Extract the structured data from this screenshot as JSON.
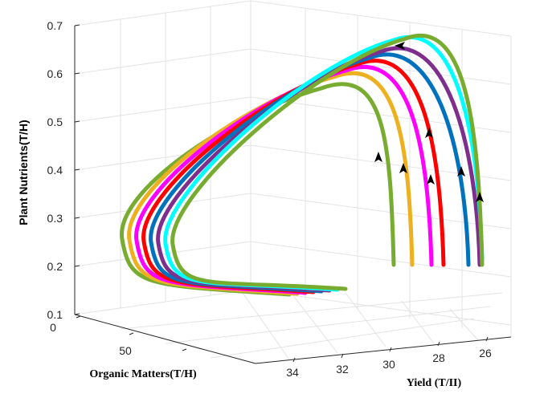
{
  "colors": {
    "grid": "#e3e3e3",
    "axis": "#262626",
    "arrow": "#000000"
  },
  "chart_data": {
    "type": "line",
    "plot_kind": "3d-phase-trajectories",
    "grid": true,
    "ylabel": "Plant Nutrients(T/H)",
    "xlabel": "Organic Matters(T/H)",
    "zlabel": "Yield (T/II)",
    "yticks": [
      "0.1",
      "0.2",
      "0.3",
      "0.4",
      "0.5",
      "0.6",
      "0.7"
    ],
    "xticks": [
      "0",
      "50"
    ],
    "zticks": [
      "34",
      "32",
      "30",
      "28",
      "26"
    ],
    "ylim": [
      0.1,
      0.7
    ],
    "series": [
      {
        "color": "#77ac30",
        "start_plant_nutrients": 0.21,
        "peak_plant_nutrients": 0.58,
        "min_plant_nutrients": 0.25
      },
      {
        "color": "#edb120",
        "start_plant_nutrients": 0.21,
        "peak_plant_nutrients": 0.6,
        "min_plant_nutrients": 0.25
      },
      {
        "color": "#ff00ff",
        "start_plant_nutrients": 0.21,
        "peak_plant_nutrients": 0.61,
        "min_plant_nutrients": 0.25
      },
      {
        "color": "#ff0000",
        "start_plant_nutrients": 0.21,
        "peak_plant_nutrients": 0.62,
        "min_plant_nutrients": 0.25
      },
      {
        "color": "#0072bd",
        "start_plant_nutrients": 0.21,
        "peak_plant_nutrients": 0.63,
        "min_plant_nutrients": 0.25
      },
      {
        "color": "#7e2f8e",
        "start_plant_nutrients": 0.21,
        "peak_plant_nutrients": 0.64,
        "min_plant_nutrients": 0.26
      },
      {
        "color": "#00ffff",
        "start_plant_nutrients": 0.22,
        "peak_plant_nutrients": 0.66,
        "min_plant_nutrients": 0.26
      },
      {
        "color": "#77ac30",
        "start_plant_nutrients": 0.21,
        "peak_plant_nutrients": 0.66,
        "min_plant_nutrients": 0.26
      }
    ]
  }
}
